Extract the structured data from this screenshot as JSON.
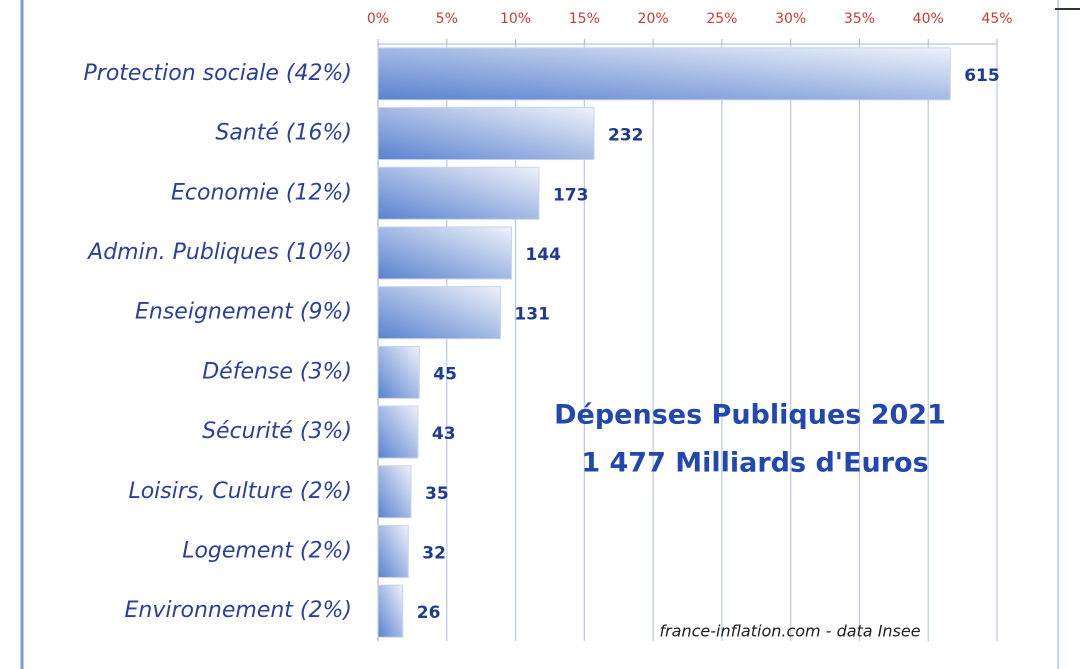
{
  "chart_data": {
    "type": "hbar",
    "categories": [
      "Protection sociale (42%)",
      "Santé (16%)",
      "Economie (12%)",
      "Admin. Publiques (10%)",
      "Enseignement (9%)",
      "Défense (3%)",
      "Sécurité (3%)",
      "Loisirs, Culture (2%)",
      "Logement (2%)",
      "Environnement (2%)"
    ],
    "values": [
      41.6,
      15.7,
      11.7,
      9.7,
      8.9,
      3.0,
      2.9,
      2.4,
      2.2,
      1.8
    ],
    "amounts": [
      615,
      232,
      173,
      144,
      131,
      45,
      43,
      35,
      32,
      26
    ],
    "color": "#5a82cf",
    "xlim": [
      0,
      45
    ],
    "xticks": [
      {
        "value": 0,
        "label": "0%"
      },
      {
        "value": 5,
        "label": "5%"
      },
      {
        "value": 10,
        "label": "10%"
      },
      {
        "value": 15,
        "label": "15%"
      },
      {
        "value": 20,
        "label": "20%"
      },
      {
        "value": 25,
        "label": "25%"
      },
      {
        "value": 30,
        "label": "30%"
      },
      {
        "value": 35,
        "label": "35%"
      },
      {
        "value": 40,
        "label": "40%"
      },
      {
        "value": 45,
        "label": "45%"
      }
    ],
    "grid": true,
    "annotations": [
      "Dépenses Publiques 2021",
      "1 477 Milliards d'Euros"
    ],
    "source": "france-inflation.com -  data Insee"
  }
}
